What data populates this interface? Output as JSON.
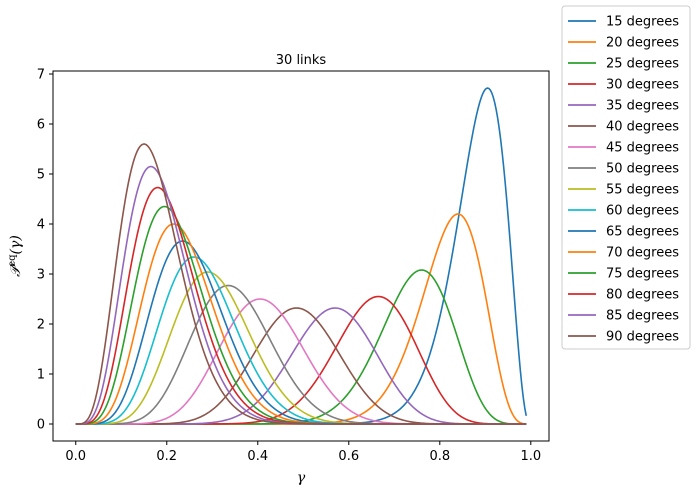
{
  "chart_data": {
    "type": "line",
    "title": "30 links",
    "xlabel": "γ",
    "ylabel": "𝒫^eq(γ)",
    "xlim": [
      -0.05,
      1.04
    ],
    "ylim": [
      -0.34,
      7.06
    ],
    "xticks": [
      "0.0",
      "0.2",
      "0.4",
      "0.6",
      "0.8",
      "1.0"
    ],
    "xtick_values": [
      0.0,
      0.2,
      0.4,
      0.6,
      0.8,
      1.0
    ],
    "yticks": [
      "0",
      "1",
      "2",
      "3",
      "4",
      "5",
      "6",
      "7"
    ],
    "ytick_values": [
      0,
      1,
      2,
      3,
      4,
      5,
      6,
      7
    ],
    "grid": false,
    "legend_position": "outside-top-right",
    "x_range": [
      0.0,
      0.99
    ],
    "series": [
      {
        "name": "15 degrees",
        "color": "#1f77b4",
        "peak_x": 0.905,
        "peak_y": 6.72
      },
      {
        "name": "20 degrees",
        "color": "#ff7f0e",
        "peak_x": 0.84,
        "peak_y": 4.2
      },
      {
        "name": "25 degrees",
        "color": "#2ca02c",
        "peak_x": 0.76,
        "peak_y": 3.08
      },
      {
        "name": "30 degrees",
        "color": "#d62728",
        "peak_x": 0.665,
        "peak_y": 2.55
      },
      {
        "name": "35 degrees",
        "color": "#9467bd",
        "peak_x": 0.57,
        "peak_y": 2.32
      },
      {
        "name": "40 degrees",
        "color": "#8c564b",
        "peak_x": 0.485,
        "peak_y": 2.32
      },
      {
        "name": "45 degrees",
        "color": "#e377c2",
        "peak_x": 0.405,
        "peak_y": 2.5
      },
      {
        "name": "50 degrees",
        "color": "#7f7f7f",
        "peak_x": 0.335,
        "peak_y": 2.77
      },
      {
        "name": "55 degrees",
        "color": "#bcbd22",
        "peak_x": 0.29,
        "peak_y": 3.04
      },
      {
        "name": "60 degrees",
        "color": "#17becf",
        "peak_x": 0.26,
        "peak_y": 3.34
      },
      {
        "name": "65 degrees",
        "color": "#1f77b4",
        "peak_x": 0.235,
        "peak_y": 3.66
      },
      {
        "name": "70 degrees",
        "color": "#ff7f0e",
        "peak_x": 0.215,
        "peak_y": 4.0
      },
      {
        "name": "75 degrees",
        "color": "#2ca02c",
        "peak_x": 0.195,
        "peak_y": 4.35
      },
      {
        "name": "80 degrees",
        "color": "#d62728",
        "peak_x": 0.18,
        "peak_y": 4.73
      },
      {
        "name": "85 degrees",
        "color": "#9467bd",
        "peak_x": 0.165,
        "peak_y": 5.15
      },
      {
        "name": "90 degrees",
        "color": "#8c564b",
        "peak_x": 0.15,
        "peak_y": 5.6
      }
    ]
  }
}
